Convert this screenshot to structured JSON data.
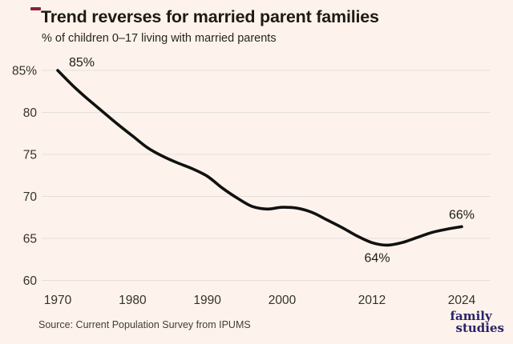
{
  "header": {
    "title": "Trend reverses for married parent families",
    "subtitle": "% of children 0–17 living with married parents"
  },
  "chart_data": {
    "type": "line",
    "title": "Trend reverses for married parent families",
    "subtitle": "% of children 0–17 living with married parents",
    "xlabel": "",
    "ylabel": "",
    "x": [
      1970,
      1972,
      1974,
      1976,
      1978,
      1980,
      1982,
      1984,
      1986,
      1988,
      1990,
      1992,
      1994,
      1996,
      1998,
      2000,
      2002,
      2004,
      2006,
      2008,
      2010,
      2012,
      2014,
      2016,
      2018,
      2020,
      2022,
      2024
    ],
    "values": [
      85,
      83.2,
      81.6,
      80.1,
      78.6,
      77.2,
      75.8,
      74.8,
      74.0,
      73.3,
      72.4,
      71.0,
      69.8,
      68.8,
      68.5,
      68.7,
      68.6,
      68.1,
      67.2,
      66.3,
      65.3,
      64.5,
      64.2,
      64.5,
      65.1,
      65.7,
      66.1,
      66.4
    ],
    "xlim": [
      1970,
      2024
    ],
    "ylim": [
      60,
      85
    ],
    "grid": "horizontal",
    "legend": "none",
    "y_ticks": [
      {
        "label": "85%",
        "value": 85
      },
      {
        "label": "80",
        "value": 80
      },
      {
        "label": "75",
        "value": 75
      },
      {
        "label": "70",
        "value": 70
      },
      {
        "label": "65",
        "value": 65
      },
      {
        "label": "60",
        "value": 60
      }
    ],
    "x_ticks": [
      {
        "label": "1970",
        "year": 1970
      },
      {
        "label": "1980",
        "year": 1980
      },
      {
        "label": "1990",
        "year": 1990
      },
      {
        "label": "2000",
        "year": 2000
      },
      {
        "label": "2012",
        "year": 2012
      },
      {
        "label": "2024",
        "year": 2024
      }
    ],
    "annotations": [
      {
        "text": "85%",
        "year": 1970,
        "value": 85,
        "placement": "above-right"
      },
      {
        "text": "64%",
        "year": 2012.7,
        "value": 64.2,
        "placement": "below"
      },
      {
        "text": "66%",
        "year": 2024,
        "value": 66.4,
        "placement": "above"
      }
    ]
  },
  "footer": {
    "source": "Source: Current Population Survey from IPUMS",
    "logo_line1": "family",
    "logo_line2": "studies"
  },
  "colors": {
    "background": "#fdf3ec",
    "accent_dash": "#8b2332",
    "line": "#111111",
    "gridline": "#e4dfdb",
    "logo": "#2b2167",
    "text_primary": "#1d1b16"
  }
}
